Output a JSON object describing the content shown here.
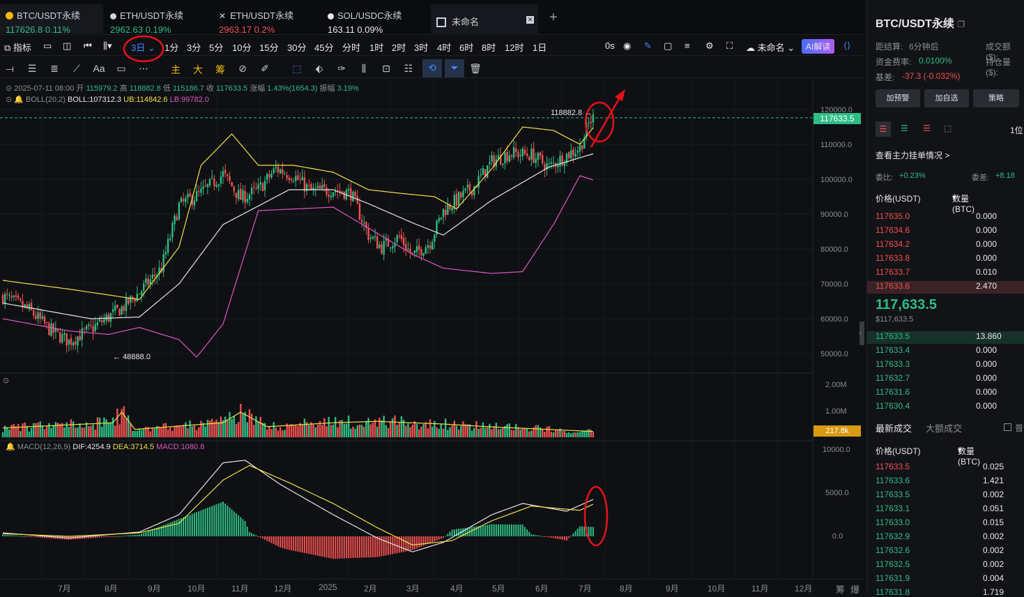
{
  "tabs": [
    {
      "name": "BTC/USDT永续",
      "price": "117626.8",
      "change": "0.11%",
      "dir": "up"
    },
    {
      "name": "ETH/USDT永续",
      "price": "2962.63",
      "change": "0.19%",
      "dir": "up"
    },
    {
      "name": "ETH/USDT永续",
      "price": "2963.17",
      "change": "0.2%",
      "dir": "down"
    },
    {
      "name": "SOL/USDC永续",
      "price": "163.11",
      "change": "0.09%",
      "dir": "flat"
    },
    {
      "name": "未命名"
    }
  ],
  "toolbar": {
    "indicator": "指标",
    "interval": "3日",
    "intervals": [
      "1分",
      "3分",
      "5分",
      "10分",
      "15分",
      "30分",
      "45分",
      "分时",
      "1时",
      "2时",
      "3时",
      "4时",
      "6时",
      "8时",
      "12时",
      "1日"
    ],
    "countdown": "0s",
    "layout_name": "未命名",
    "ai_label": "AI解读"
  },
  "draw_tools": {
    "zhu": "主",
    "da": "大",
    "chou": "筹",
    "text": "Aa"
  },
  "legend": {
    "date": "2025-07-11 08:00",
    "open_l": "开",
    "open": "115979.2",
    "high_l": "高",
    "high": "118882.8",
    "low_l": "低",
    "low": "115186.7",
    "close_l": "收",
    "close": "117633.5",
    "chg_l": "涨幅",
    "chg": "1.43%(1654.3)",
    "amp_l": "振幅",
    "amp": "3.19%",
    "boll_name": "BOLL(20,2)",
    "boll": "BOLL:107312.3",
    "ub": "UB:114842.6",
    "lb": "LB:99782.0",
    "macd_name": "MACD(12,26,9)",
    "dif": "DIF:4254.9",
    "dea": "DEA:3714.5",
    "macd": "MACD:1080.8"
  },
  "price_axis": [
    "120000.0",
    "110000.0",
    "100000.0",
    "90000.0",
    "80000.0",
    "70000.0",
    "60000.0",
    "50000.0"
  ],
  "last_price_tag": "117633.5",
  "high_marker": "118882.8",
  "low_marker": "48888.0",
  "vol_axis": [
    "2.00M",
    "1.00M"
  ],
  "vol_tag": "217.8k",
  "macd_axis": [
    "10000.0",
    "5000.0",
    "0.0"
  ],
  "time_axis": [
    "7月",
    "8月",
    "9月",
    "10月",
    "11月",
    "12月",
    "2025",
    "2月",
    "3月",
    "4月",
    "5月",
    "6月",
    "7月",
    "8月",
    "9月",
    "10月",
    "11月",
    "12月"
  ],
  "corner": [
    "筹",
    "爆"
  ],
  "colors": {
    "up": "#2ebd85",
    "down": "#f0504f",
    "boll_mid": "#e6e6e6",
    "boll_ub": "#f0e14a",
    "boll_lb": "#e055c6",
    "accent": "#f0b90b",
    "annot": "#e8121b"
  },
  "right": {
    "title": "BTC/USDT永续",
    "settle_l": "距结算:",
    "settle": "6分钟后",
    "oi_l": "成交额($):",
    "fund_l": "资金费率:",
    "fund": "0.0100%",
    "hold_l": "持仓量($):",
    "basis_l": "基差:",
    "basis": "-37.3 (-0.032%)",
    "btns": [
      "加预警",
      "加自选",
      "策略"
    ],
    "depth_step": "1位",
    "orderbook_link": "查看主力挂单情况 >",
    "bid_ratio_l": "委比:",
    "bid_ratio": "+0.23%",
    "diff_l": "委差:",
    "diff": "+8.18",
    "price_h": "价格(USDT)",
    "qty_h": "数量 (BTC)",
    "asks": [
      [
        "117635.0",
        "0.000"
      ],
      [
        "117634.6",
        "0.000"
      ],
      [
        "117634.2",
        "0.000"
      ],
      [
        "117633.8",
        "0.000"
      ],
      [
        "117633.7",
        "0.010"
      ],
      [
        "117633.6",
        "2.470"
      ]
    ],
    "last": "117,633.5",
    "last_usd": "$117,633.5",
    "bids": [
      [
        "117633.5",
        "13.860"
      ],
      [
        "117633.4",
        "0.000"
      ],
      [
        "117633.3",
        "0.000"
      ],
      [
        "117632.7",
        "0.000"
      ],
      [
        "117631.6",
        "0.000"
      ],
      [
        "117630.4",
        "0.000"
      ]
    ],
    "trade_tab1": "最新成交",
    "trade_tab2": "大额成交",
    "trade_opt": "普",
    "trade_price_h": "价格(USDT)",
    "trade_qty_h": "数量(BTC)",
    "trades": [
      [
        "117633.5",
        "0.025",
        "down"
      ],
      [
        "117633.6",
        "1.421",
        "up"
      ],
      [
        "117633.5",
        "0.002",
        "up"
      ],
      [
        "117633.1",
        "0.051",
        "up"
      ],
      [
        "117633.0",
        "0.015",
        "up"
      ],
      [
        "117632.9",
        "0.002",
        "up"
      ],
      [
        "117632.6",
        "0.002",
        "up"
      ],
      [
        "117632.5",
        "0.002",
        "up"
      ],
      [
        "117631.9",
        "0.004",
        "up"
      ],
      [
        "117631.8",
        "1.719",
        "up"
      ]
    ]
  },
  "chart_data": {
    "type": "candlestick",
    "interval": "3日",
    "y_range": [
      45000,
      122000
    ],
    "series_anchors": {
      "close": [
        [
          0,
          66500
        ],
        [
          12,
          62500
        ],
        [
          22,
          56500
        ],
        [
          30,
          53500
        ],
        [
          40,
          57000
        ],
        [
          48,
          60500
        ],
        [
          55,
          63500
        ],
        [
          62,
          67500
        ],
        [
          72,
          74500
        ],
        [
          80,
          92500
        ],
        [
          90,
          96000
        ],
        [
          100,
          101500
        ],
        [
          108,
          94500
        ],
        [
          116,
          97000
        ],
        [
          124,
          103000
        ],
        [
          132,
          101000
        ],
        [
          140,
          96500
        ],
        [
          150,
          97000
        ],
        [
          158,
          96000
        ],
        [
          166,
          84000
        ],
        [
          172,
          80500
        ],
        [
          180,
          83500
        ],
        [
          186,
          78000
        ],
        [
          194,
          82000
        ],
        [
          200,
          91000
        ],
        [
          206,
          94000
        ],
        [
          214,
          98000
        ],
        [
          222,
          105000
        ],
        [
          230,
          107500
        ],
        [
          240,
          107000
        ],
        [
          248,
          103500
        ],
        [
          256,
          107000
        ],
        [
          262,
          109000
        ],
        [
          266,
          115900
        ],
        [
          268,
          117600
        ]
      ],
      "boll_mid": [
        [
          0,
          64500
        ],
        [
          40,
          60000
        ],
        [
          62,
          60500
        ],
        [
          80,
          70000
        ],
        [
          100,
          87000
        ],
        [
          130,
          97000
        ],
        [
          150,
          97000
        ],
        [
          166,
          93000
        ],
        [
          186,
          87500
        ],
        [
          200,
          84000
        ],
        [
          222,
          94000
        ],
        [
          248,
          103500
        ],
        [
          268,
          107300
        ]
      ],
      "boll_ub": [
        [
          0,
          71000
        ],
        [
          30,
          68500
        ],
        [
          62,
          65500
        ],
        [
          80,
          80500
        ],
        [
          90,
          104000
        ],
        [
          104,
          113000
        ],
        [
          116,
          104000
        ],
        [
          132,
          104000
        ],
        [
          150,
          102000
        ],
        [
          166,
          97000
        ],
        [
          180,
          96000
        ],
        [
          196,
          95000
        ],
        [
          206,
          91500
        ],
        [
          222,
          103000
        ],
        [
          236,
          115000
        ],
        [
          250,
          114000
        ],
        [
          262,
          110000
        ],
        [
          268,
          114800
        ]
      ],
      "boll_lb": [
        [
          0,
          60000
        ],
        [
          30,
          56500
        ],
        [
          48,
          55500
        ],
        [
          62,
          57500
        ],
        [
          80,
          54000
        ],
        [
          88,
          49000
        ],
        [
          100,
          58500
        ],
        [
          116,
          91000
        ],
        [
          150,
          92000
        ],
        [
          166,
          86000
        ],
        [
          186,
          78500
        ],
        [
          200,
          74500
        ],
        [
          222,
          73000
        ],
        [
          236,
          73500
        ],
        [
          250,
          87000
        ],
        [
          262,
          101000
        ],
        [
          268,
          99800
        ]
      ],
      "volume_m": [
        [
          0,
          0.35
        ],
        [
          50,
          0.55
        ],
        [
          54,
          0.95
        ],
        [
          60,
          0.3
        ],
        [
          100,
          0.55
        ],
        [
          108,
          0.95
        ],
        [
          120,
          0.4
        ],
        [
          150,
          0.55
        ],
        [
          170,
          0.6
        ],
        [
          200,
          0.5
        ],
        [
          220,
          0.4
        ],
        [
          268,
          0.22
        ]
      ],
      "dif": [
        [
          0,
          400
        ],
        [
          30,
          -200
        ],
        [
          62,
          500
        ],
        [
          80,
          2500
        ],
        [
          100,
          8500
        ],
        [
          110,
          8800
        ],
        [
          126,
          6000
        ],
        [
          150,
          2500
        ],
        [
          170,
          -200
        ],
        [
          186,
          -1800
        ],
        [
          200,
          -700
        ],
        [
          222,
          2500
        ],
        [
          236,
          3800
        ],
        [
          256,
          2900
        ],
        [
          268,
          4255
        ]
      ],
      "dea": [
        [
          0,
          300
        ],
        [
          30,
          0
        ],
        [
          62,
          400
        ],
        [
          80,
          1500
        ],
        [
          100,
          6500
        ],
        [
          112,
          8200
        ],
        [
          130,
          6200
        ],
        [
          150,
          3800
        ],
        [
          170,
          1000
        ],
        [
          186,
          -1000
        ],
        [
          204,
          -500
        ],
        [
          222,
          1800
        ],
        [
          240,
          3500
        ],
        [
          262,
          3000
        ],
        [
          268,
          3715
        ]
      ]
    }
  }
}
